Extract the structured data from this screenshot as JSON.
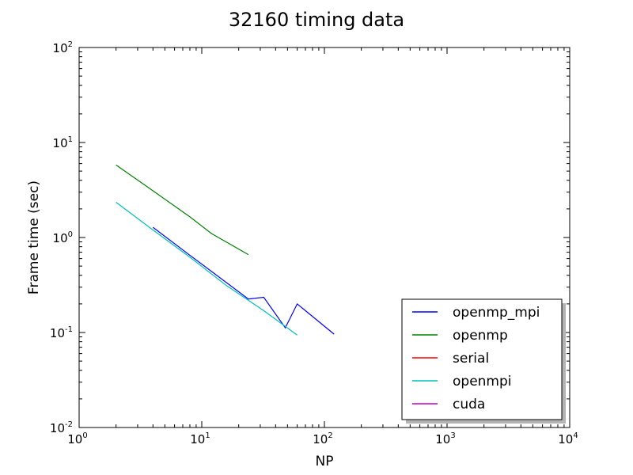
{
  "chart_data": {
    "type": "line",
    "title": "32160 timing data",
    "xlabel": "NP",
    "ylabel": "Frame time (sec)",
    "xscale": "log",
    "yscale": "log",
    "xlim": [
      1,
      10000
    ],
    "ylim": [
      0.01,
      100
    ],
    "x_ticks": [
      {
        "base": "10",
        "exp": "0",
        "value": 1
      },
      {
        "base": "10",
        "exp": "1",
        "value": 10
      },
      {
        "base": "10",
        "exp": "2",
        "value": 100
      },
      {
        "base": "10",
        "exp": "3",
        "value": 1000
      },
      {
        "base": "10",
        "exp": "4",
        "value": 10000
      }
    ],
    "y_ticks": [
      {
        "base": "10",
        "exp": "-2",
        "value": 0.01
      },
      {
        "base": "10",
        "exp": "-1",
        "value": 0.1
      },
      {
        "base": "10",
        "exp": "0",
        "value": 1
      },
      {
        "base": "10",
        "exp": "1",
        "value": 10
      },
      {
        "base": "10",
        "exp": "2",
        "value": 100
      }
    ],
    "grid": false,
    "legend_position": "lower-right",
    "series": [
      {
        "name": "openmp_mpi",
        "color": "#0000ff",
        "points": [
          [
            4,
            1.28
          ],
          [
            8,
            0.65
          ],
          [
            24,
            0.225
          ],
          [
            32,
            0.235
          ],
          [
            48,
            0.112
          ],
          [
            60,
            0.2
          ],
          [
            120,
            0.096
          ]
        ]
      },
      {
        "name": "openmp",
        "color": "#008000",
        "points": [
          [
            2,
            5.8
          ],
          [
            4,
            3.1
          ],
          [
            8,
            1.65
          ],
          [
            12,
            1.1
          ],
          [
            24,
            0.66
          ]
        ]
      },
      {
        "name": "serial",
        "color": "#ff0000",
        "points": []
      },
      {
        "name": "openmpi",
        "color": "#00bfbf",
        "points": [
          [
            2,
            2.35
          ],
          [
            4,
            1.2
          ],
          [
            8,
            0.62
          ],
          [
            16,
            0.31
          ],
          [
            32,
            0.17
          ],
          [
            60,
            0.094
          ]
        ]
      },
      {
        "name": "cuda",
        "color": "#bf00bf",
        "points": []
      }
    ]
  }
}
